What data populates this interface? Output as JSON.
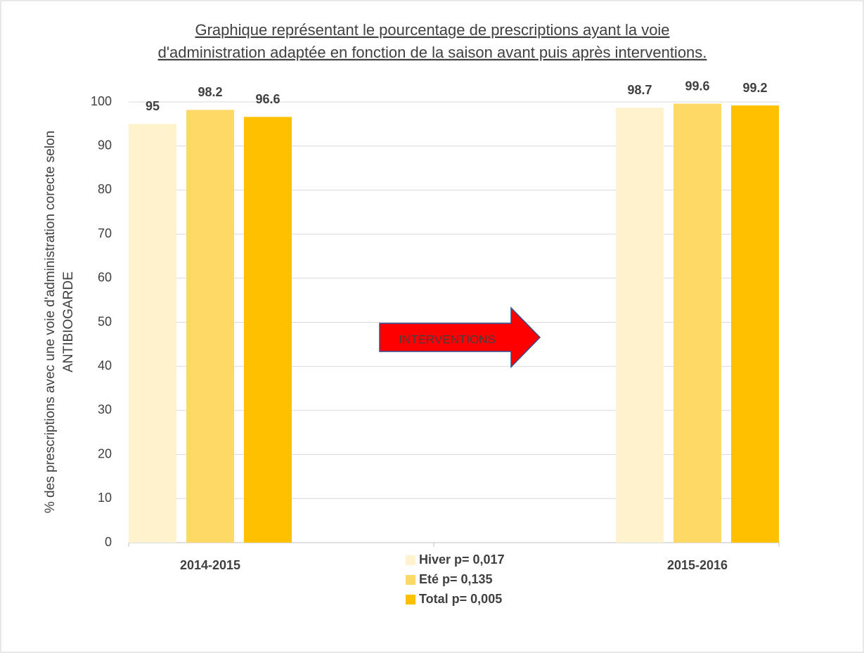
{
  "chart_data": {
    "type": "bar",
    "title": [
      "Graphique représentant le pourcentage de prescriptions ayant la voie",
      "d'administration adaptée en fonction de la saison avant puis après interventions."
    ],
    "y_label": [
      "% des prescriptions avec une voie d'administration corecte selon",
      "ANTIBIOGARDE"
    ],
    "annotation": "INTERVENTIONS",
    "categories": [
      "2014-2015",
      null,
      "2015-2016"
    ],
    "series": [
      {
        "name": "Hiver p= 0,017",
        "color": "#FFF2CC",
        "values": [
          95,
          null,
          98.7
        ]
      },
      {
        "name": "Eté p= 0,135",
        "color": "#FFD966",
        "values": [
          98.2,
          null,
          99.6
        ]
      },
      {
        "name": "Total p= 0,005",
        "color": "#FFC000",
        "values": [
          96.6,
          null,
          99.2
        ]
      }
    ],
    "ylim": [
      0,
      100
    ],
    "yticks": [
      0,
      10,
      20,
      30,
      40,
      50,
      60,
      70,
      80,
      90,
      100
    ],
    "grid": true
  }
}
